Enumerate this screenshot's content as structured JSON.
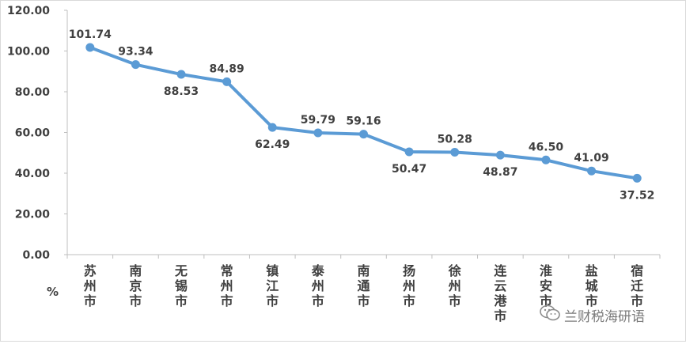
{
  "chart_data": {
    "type": "line",
    "categories": [
      "苏州市",
      "南京市",
      "无锡市",
      "常州市",
      "镇江市",
      "泰州市",
      "南通市",
      "扬州市",
      "徐州市",
      "连云港市",
      "淮安市",
      "盐城市",
      "宿迁市"
    ],
    "values": [
      101.74,
      93.34,
      88.53,
      84.89,
      62.49,
      59.79,
      59.16,
      50.47,
      50.28,
      48.87,
      46.5,
      41.09,
      37.52
    ],
    "data_labels": [
      "101.74",
      "93.34",
      "88.53",
      "84.89",
      "62.49",
      "59.79",
      "59.16",
      "50.47",
      "50.28",
      "48.87",
      "46.50",
      "41.09",
      "37.52"
    ],
    "ylim": [
      0,
      120
    ],
    "yticks": [
      "0.00",
      "20.00",
      "40.00",
      "60.00",
      "80.00",
      "100.00",
      "120.00"
    ],
    "unit_label": "%",
    "line_color": "#5b9bd5",
    "grid": false,
    "legend": "none"
  },
  "watermark": {
    "text": "兰财税海研语",
    "icon": "wechat-icon"
  }
}
